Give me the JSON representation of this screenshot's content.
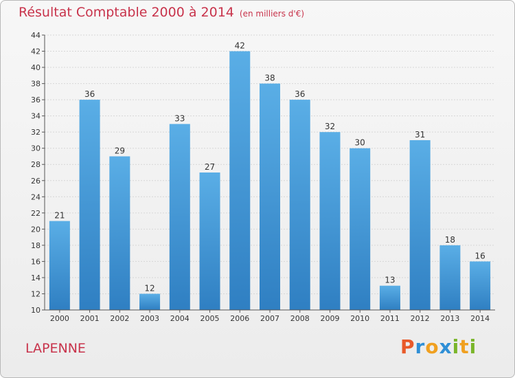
{
  "chart_data": {
    "type": "bar",
    "title": "Résultat Comptable 2000 à 2014",
    "subtitle": "(en milliers d'€)",
    "categories": [
      "2000",
      "2001",
      "2002",
      "2003",
      "2004",
      "2005",
      "2006",
      "2007",
      "2008",
      "2009",
      "2010",
      "2011",
      "2012",
      "2013",
      "2014"
    ],
    "values": [
      21,
      36,
      29,
      12,
      33,
      27,
      42,
      38,
      36,
      32,
      30,
      13,
      31,
      18,
      16
    ],
    "ylim": [
      10,
      44
    ],
    "yticks": [
      10,
      12,
      14,
      16,
      18,
      20,
      22,
      24,
      26,
      28,
      30,
      32,
      34,
      36,
      38,
      40,
      42,
      44
    ],
    "grid": true,
    "xlabel": "",
    "ylabel": ""
  },
  "location": "LAPENNE",
  "brand": {
    "letters": [
      "P",
      "r",
      "o",
      "x",
      "i",
      "t",
      "i"
    ],
    "colors": [
      "#e85a2a",
      "#2f8fd6",
      "#f0a020",
      "#2f8fd6",
      "#7ab52a",
      "#f0a020",
      "#7ab52a"
    ]
  },
  "colors": {
    "bar_light": "#5aaee6",
    "bar_dark": "#2f7fc2",
    "title": "#c8334b"
  }
}
